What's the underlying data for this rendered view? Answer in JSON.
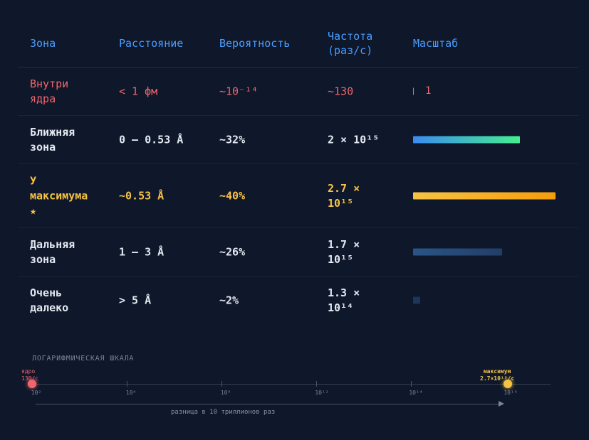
{
  "table": {
    "headers": {
      "zone": "Зона",
      "distance": "Расстояние",
      "probability": "Вероятность",
      "frequency": "Частота\n(раз/с)",
      "scale": "Масштаб"
    },
    "rows": [
      {
        "zone": "Внутри\nядра",
        "distance": "< 1 фм",
        "probability": "~10⁻¹⁴",
        "frequency": "~130",
        "scale_label": "1"
      },
      {
        "zone": "Ближняя\nзона",
        "distance": "0 – 0.53 Å",
        "probability": "~32%",
        "frequency": "2 × 10¹⁵",
        "scale_label": ""
      },
      {
        "zone": "У\nмаксимума\n★",
        "distance": "~0.53 Å",
        "probability": "~40%",
        "frequency": "2.7 ×\n10¹⁵",
        "scale_label": ""
      },
      {
        "zone": "Дальняя\nзона",
        "distance": "1 – 3 Å",
        "probability": "~26%",
        "frequency": "1.7 ×\n10¹⁵",
        "scale_label": ""
      },
      {
        "zone": "Очень\nдалеко",
        "distance": "> 5 Å",
        "probability": "~2%",
        "frequency": "1.3 ×\n10¹⁴",
        "scale_label": ""
      }
    ]
  },
  "log_scale": {
    "title": "ЛОГАРИФМИЧЕСКАЯ ШКАЛА",
    "ticks": [
      "10²",
      "10⁴",
      "10⁸",
      "10¹²",
      "10¹⁴",
      "10¹⁶"
    ],
    "core_label": "ядро\n130/с",
    "peak_label": "максимум\n2.7×10¹⁵/с",
    "difference_label": "разница в 10 триллионов раз"
  },
  "colors": {
    "background": "#0f172a",
    "header": "#4a9eff",
    "core": "#f0666c",
    "peak": "#f6c244",
    "near_bar_start": "#3b8cf0",
    "near_bar_end": "#45ee8f"
  }
}
